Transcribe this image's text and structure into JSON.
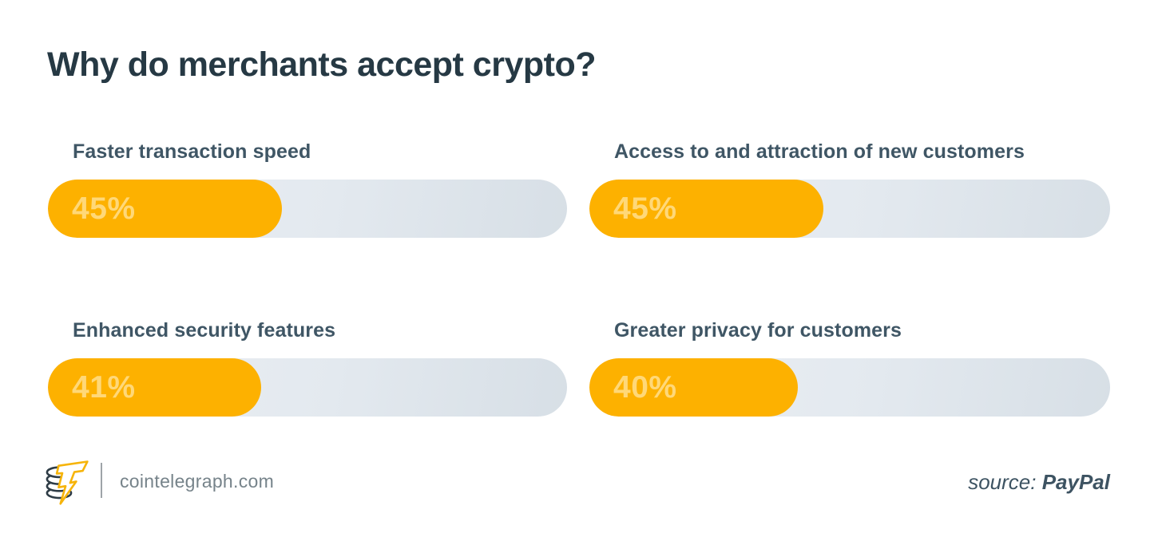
{
  "page": {
    "background": "#FFFFFF"
  },
  "title": "Why do merchants accept crypto?",
  "chart_data": {
    "type": "bar",
    "orientation": "horizontal",
    "layout": "2x2-grid",
    "title": "Why do merchants accept crypto?",
    "categories": [
      "Faster transaction speed",
      "Access to and attraction of new customers",
      "Enhanced security features",
      "Greater privacy for customers"
    ],
    "values": [
      45,
      45,
      41,
      40
    ],
    "value_labels": [
      "45%",
      "45%",
      "41%",
      "40%"
    ],
    "xlim": [
      0,
      100
    ],
    "grid": false,
    "legend": false,
    "bar_color": "#FDB100",
    "bar_value_text_color": "#FFD878",
    "track_gradient": [
      "#ECF0F4",
      "#D7DFE6"
    ],
    "label_color": "#3F5665"
  },
  "footer": {
    "logo_icon": "cointelegraph-coins-lightning-logo",
    "site": "cointelegraph.com",
    "source_label": "source: ",
    "source_value": "PayPal"
  },
  "colors": {
    "title": "#263944",
    "accent": "#FDB100",
    "footer_site_text": "#76838A",
    "source_text": "#3D5362"
  }
}
